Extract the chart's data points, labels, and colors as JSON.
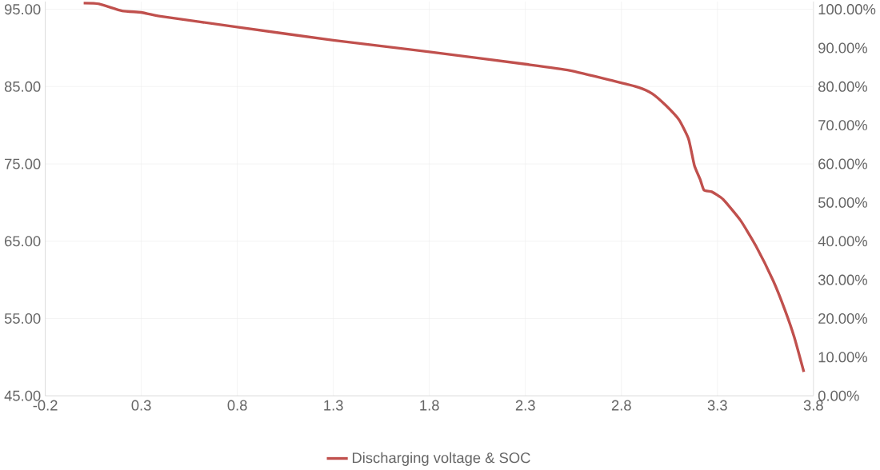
{
  "chart_data": {
    "type": "line",
    "x": [
      0,
      0.08,
      0.2,
      0.3,
      0.4,
      0.8,
      1.3,
      1.8,
      2.3,
      2.53,
      2.75,
      2.89,
      2.96,
      3.03,
      3.1,
      3.15,
      3.18,
      3.21,
      3.23,
      3.27,
      3.33,
      3.42,
      3.5,
      3.59,
      3.65,
      3.7,
      3.75
    ],
    "series": [
      {
        "name": "Discharging voltage & SOC",
        "color": "#c0504d",
        "values": [
          95.8,
          95.7,
          94.8,
          94.6,
          94.1,
          92.7,
          91.0,
          89.5,
          87.9,
          87.1,
          85.8,
          84.9,
          84.1,
          82.6,
          80.7,
          78.2,
          74.8,
          73.0,
          71.6,
          71.4,
          70.4,
          67.7,
          64.4,
          59.9,
          56.2,
          52.6,
          48.1
        ]
      }
    ],
    "xlim": [
      -0.2,
      3.8
    ],
    "xticks": [
      -0.2,
      0.3,
      0.8,
      1.3,
      1.8,
      2.3,
      2.8,
      3.3,
      3.8
    ],
    "ylim": [
      45,
      96
    ],
    "yticks": [
      {
        "value": 45,
        "label": "45.00"
      },
      {
        "value": 55,
        "label": "55.00"
      },
      {
        "value": 65,
        "label": "65.00"
      },
      {
        "value": 75,
        "label": "75.00"
      },
      {
        "value": 85,
        "label": "85.00"
      },
      {
        "value": 95,
        "label": "95.00"
      }
    ],
    "y2lim": [
      0,
      102
    ],
    "y2ticks": [
      {
        "value": 0,
        "label": "0.00%"
      },
      {
        "value": 10,
        "label": "10.00%"
      },
      {
        "value": 20,
        "label": "20.00%"
      },
      {
        "value": 30,
        "label": "30.00%"
      },
      {
        "value": 40,
        "label": "40.00%"
      },
      {
        "value": 50,
        "label": "50.00%"
      },
      {
        "value": 60,
        "label": "60.00%"
      },
      {
        "value": 70,
        "label": "70.00%"
      },
      {
        "value": 80,
        "label": "80.00%"
      },
      {
        "value": 90,
        "label": "90.00%"
      },
      {
        "value": 100,
        "label": "100.00%"
      }
    ],
    "grid": true,
    "legend": "bottom",
    "marker": "none",
    "line_style": "solid"
  }
}
